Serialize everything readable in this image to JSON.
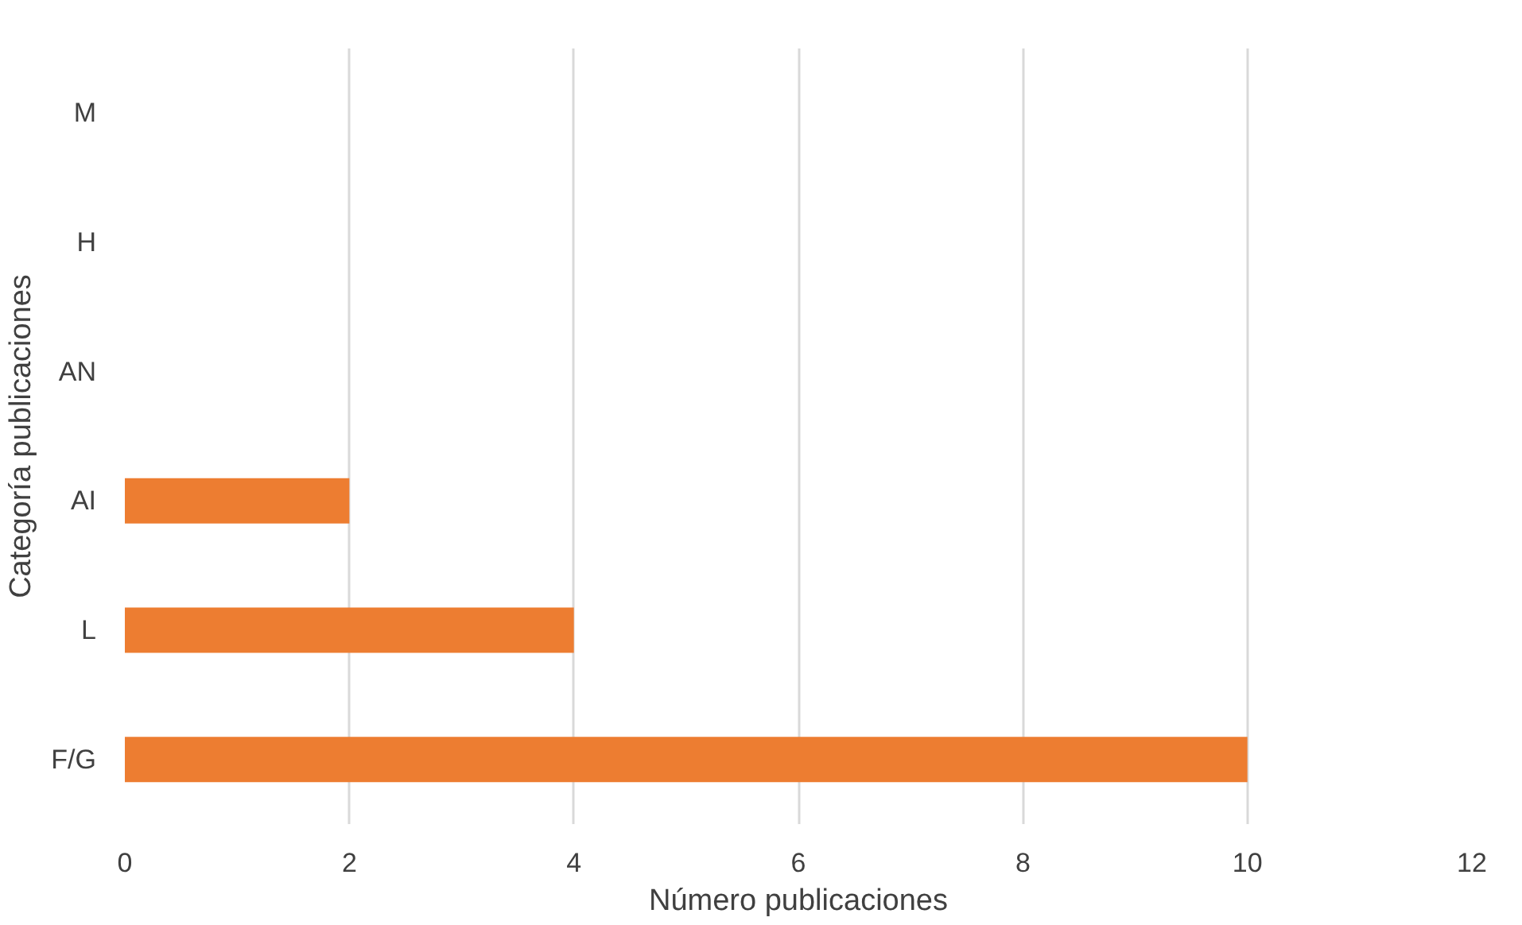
{
  "chart_data": {
    "type": "bar",
    "orientation": "horizontal",
    "xlabel": "Número publicaciones",
    "ylabel": "Categoría publicaciones",
    "categories": [
      "M",
      "H",
      "AN",
      "AI",
      "L",
      "F/G"
    ],
    "values": [
      0,
      0,
      0,
      2,
      4,
      10
    ],
    "color": "#ed7d31",
    "xlim": [
      0,
      12
    ],
    "xticks": [
      0,
      2,
      4,
      6,
      8,
      10,
      12
    ],
    "grid": "x"
  }
}
